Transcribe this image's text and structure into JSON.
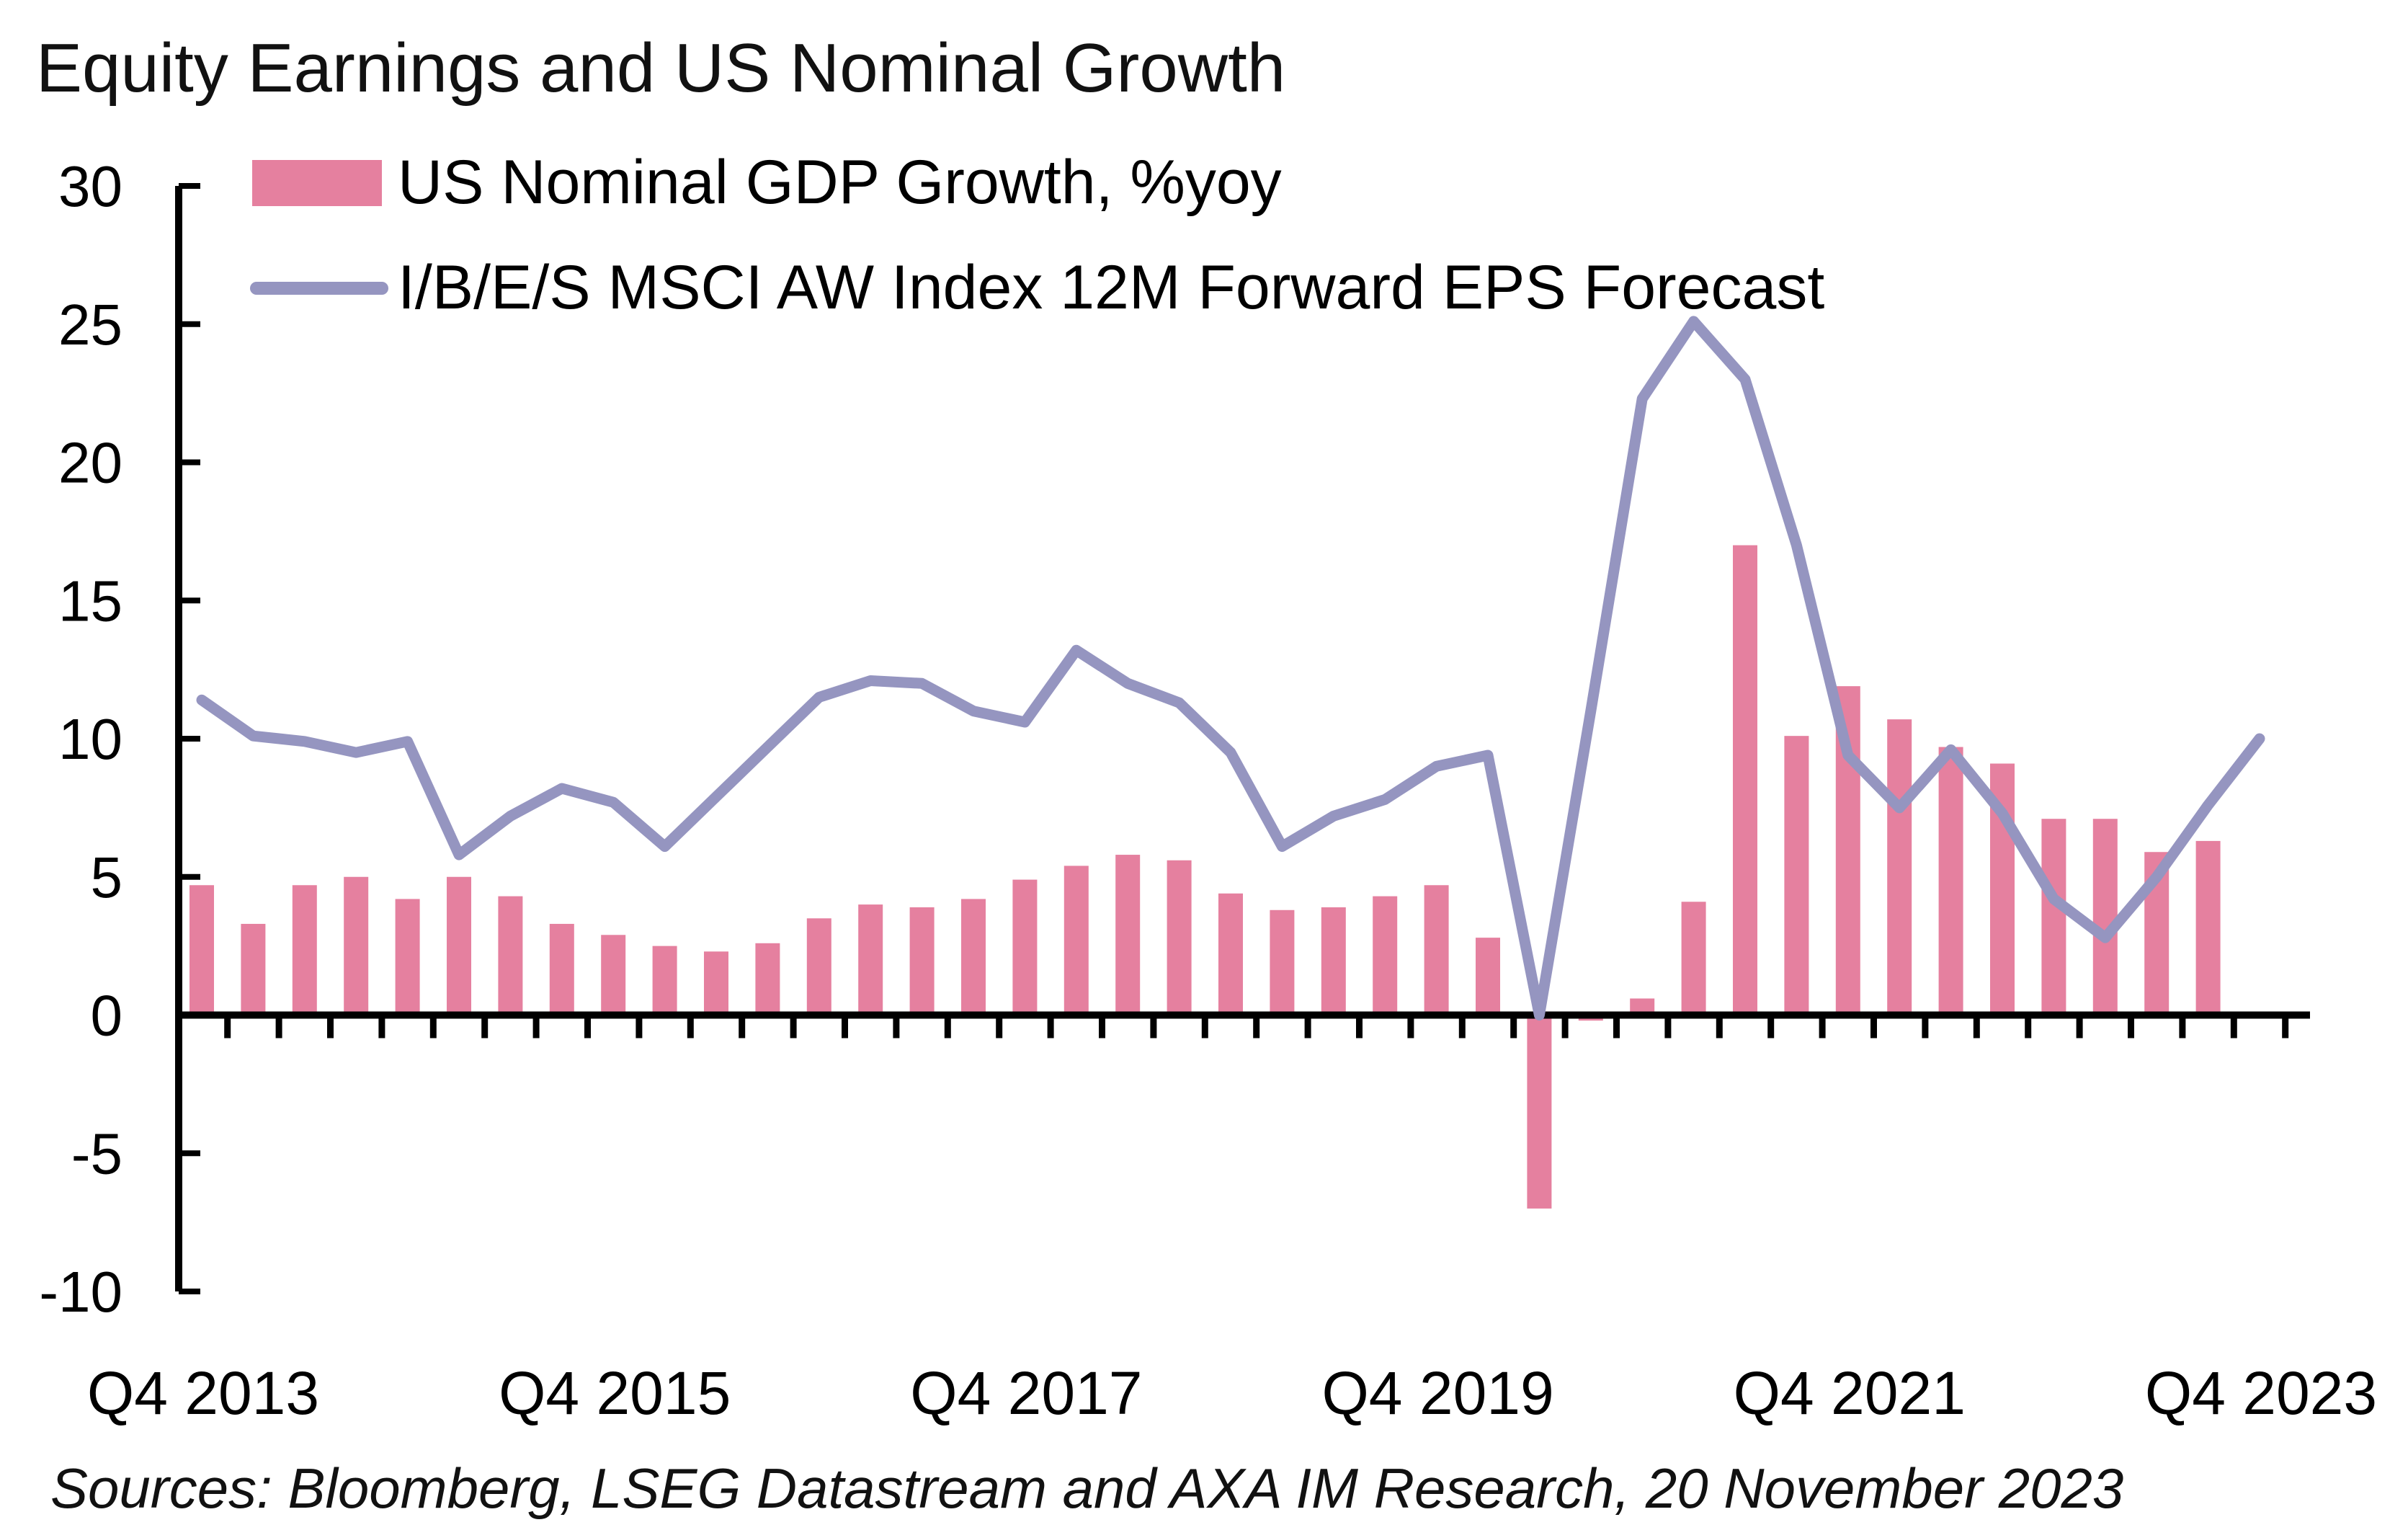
{
  "chart_data": {
    "type": "bar",
    "title": "Equity Earnings and US Nominal Growth",
    "source": "Sources: Bloomberg, LSEG Datastream and AXA IM Research, 20 November 2023",
    "ylim": [
      -10,
      30
    ],
    "y_ticks": [
      "30",
      "25",
      "20",
      "15",
      "10",
      "5",
      "0",
      "-5",
      "-10"
    ],
    "y_tick_values": [
      30,
      25,
      20,
      15,
      10,
      5,
      0,
      -5,
      -10
    ],
    "x_tick_labels": [
      "Q4 2013",
      "Q4 2015",
      "Q4 2017",
      "Q4 2019",
      "Q4 2021",
      "Q4 2023"
    ],
    "grid": false,
    "legend_position": "top-left",
    "categories": [
      "Q4 2013",
      "Q1 2014",
      "Q2 2014",
      "Q3 2014",
      "Q4 2014",
      "Q1 2015",
      "Q2 2015",
      "Q3 2015",
      "Q4 2015",
      "Q1 2016",
      "Q2 2016",
      "Q3 2016",
      "Q4 2016",
      "Q1 2017",
      "Q2 2017",
      "Q3 2017",
      "Q4 2017",
      "Q1 2018",
      "Q2 2018",
      "Q3 2018",
      "Q4 2018",
      "Q1 2019",
      "Q2 2019",
      "Q3 2019",
      "Q4 2019",
      "Q1 2020",
      "Q2 2020",
      "Q3 2020",
      "Q4 2020",
      "Q1 2021",
      "Q2 2021",
      "Q3 2021",
      "Q4 2021",
      "Q1 2022",
      "Q2 2022",
      "Q3 2022",
      "Q4 2022",
      "Q1 2023",
      "Q2 2023",
      "Q3 2023",
      "Q4 2023"
    ],
    "series": [
      {
        "name": "US Nominal GDP Growth, %yoy",
        "type": "bar",
        "color": "#e5809f",
        "values": [
          4.7,
          3.3,
          4.7,
          5.0,
          4.2,
          5.0,
          4.3,
          3.3,
          2.9,
          2.5,
          2.3,
          2.6,
          3.5,
          4.0,
          3.9,
          4.2,
          4.9,
          5.4,
          5.8,
          5.6,
          4.4,
          3.8,
          3.9,
          4.3,
          4.7,
          2.8,
          -7.0,
          -0.2,
          0.6,
          4.1,
          17.0,
          10.1,
          11.9,
          10.7,
          9.7,
          9.1,
          7.1,
          7.1,
          5.9,
          6.3,
          null
        ]
      },
      {
        "name": "I/B/E/S MSCI AW Index 12M Forward EPS Forecast",
        "type": "line",
        "color": "#9595c0",
        "values": [
          11.4,
          10.1,
          9.9,
          9.5,
          9.9,
          5.8,
          7.2,
          8.2,
          7.7,
          6.1,
          7.9,
          9.7,
          11.5,
          12.1,
          12.0,
          11.0,
          10.6,
          13.2,
          12.0,
          11.3,
          9.5,
          6.1,
          7.2,
          7.8,
          9.0,
          9.4,
          0.0,
          11.0,
          22.3,
          25.1,
          23.0,
          17.0,
          9.4,
          7.5,
          9.6,
          7.3,
          4.2,
          2.8,
          5.0,
          7.6,
          10.0
        ]
      }
    ]
  }
}
